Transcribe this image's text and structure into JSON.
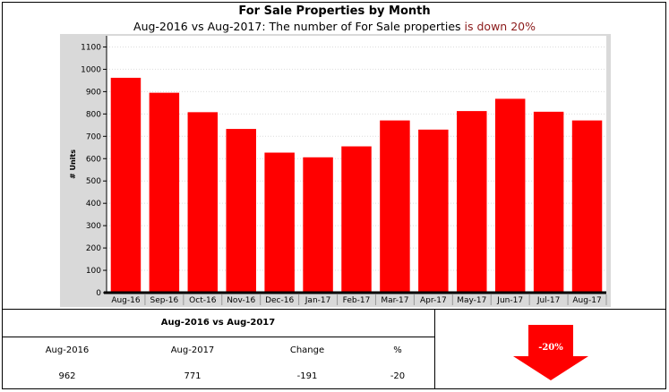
{
  "header": {
    "title": "For Sale Properties by Month",
    "subtitle_prefix": "Aug-2016 vs Aug-2017: The number of For Sale properties ",
    "subtitle_emphasis": "is down 20%"
  },
  "colors": {
    "bar": "#ff0000",
    "plot_bg": "#d9d9d9",
    "arrow": "#ff0000",
    "emphasis": "#8b1a1a"
  },
  "chart_data": {
    "type": "bar",
    "categories": [
      "Aug-16",
      "Sep-16",
      "Oct-16",
      "Nov-16",
      "Dec-16",
      "Jan-17",
      "Feb-17",
      "Mar-17",
      "Apr-17",
      "May-17",
      "Jun-17",
      "Jul-17",
      "Aug-17"
    ],
    "values": [
      962,
      895,
      808,
      733,
      627,
      606,
      655,
      771,
      730,
      813,
      868,
      810,
      771
    ],
    "title": "For Sale Properties by Month",
    "xlabel": "",
    "ylabel": "# Units",
    "ylim": [
      0,
      1150
    ],
    "yticks": [
      0,
      100,
      200,
      300,
      400,
      500,
      600,
      700,
      800,
      900,
      1000,
      1100
    ],
    "grid": true,
    "legend": "none"
  },
  "comparison": {
    "title": "Aug-2016 vs Aug-2017",
    "headers": [
      "Aug-2016",
      "Aug-2017",
      "Change",
      "%"
    ],
    "values": [
      "962",
      "771",
      "-191",
      "-20"
    ],
    "indicator": {
      "label": "-20%",
      "direction": "down",
      "icon": "down-arrow-icon"
    }
  }
}
